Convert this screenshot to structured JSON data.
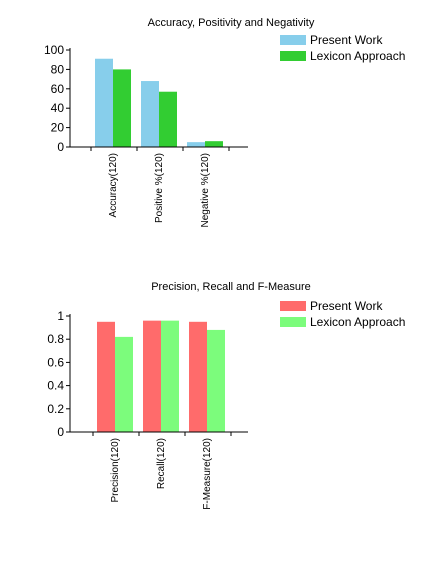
{
  "chart_data": [
    {
      "type": "bar",
      "title": "Accuracy, Positivity and Negativity",
      "categories": [
        "Accuracy(120)",
        "Positive %(120)",
        "Negative %(120)"
      ],
      "series": [
        {
          "name": "Present Work",
          "color": "#87CEEB",
          "values": [
            91,
            68,
            5
          ]
        },
        {
          "name": "Lexicon Approach",
          "color": "#32CD32",
          "values": [
            80,
            57,
            6
          ]
        }
      ],
      "ylim": [
        0,
        100
      ],
      "yticks": [
        0,
        20,
        40,
        60,
        80,
        100
      ],
      "ytick_labels": [
        "0",
        "20",
        "40",
        "60",
        "80",
        "100"
      ],
      "legend": "top-right",
      "grid": false
    },
    {
      "type": "bar",
      "title": "Precision, Recall and F-Measure",
      "categories": [
        "Precision(120)",
        "Recall(120)",
        "F-Measure(120)"
      ],
      "series": [
        {
          "name": "Present Work",
          "color": "#FF6B6B",
          "values": [
            0.95,
            0.96,
            0.95
          ]
        },
        {
          "name": "Lexicon Approach",
          "color": "#7CFC7C",
          "values": [
            0.82,
            0.96,
            0.88
          ]
        }
      ],
      "ylim": [
        0,
        1
      ],
      "yticks": [
        0,
        0.2,
        0.4,
        0.6,
        0.8,
        1
      ],
      "ytick_labels": [
        "0",
        "0.2",
        "0.4",
        "0.6",
        "0.8",
        "1"
      ],
      "legend": "top-right",
      "grid": false
    }
  ]
}
